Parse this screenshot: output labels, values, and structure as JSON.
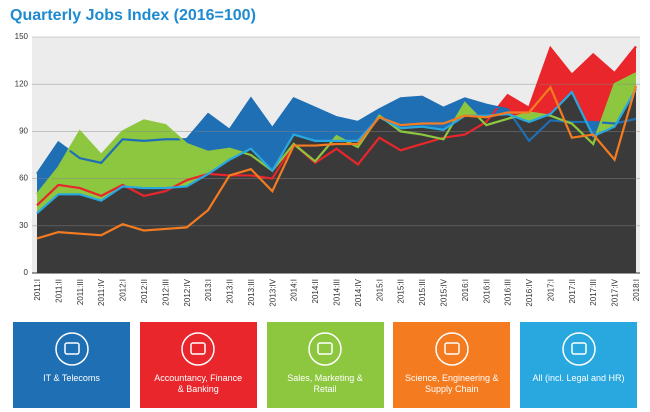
{
  "chart_data": {
    "type": "area-line",
    "title": "Quarterly Jobs Index (2016=100)",
    "categories": [
      "2011:I",
      "2011:II",
      "2011:III",
      "2011:IV",
      "2012:I",
      "2012:II",
      "2012:III",
      "2012:IV",
      "2013:I",
      "2013:II",
      "2013:III",
      "2013:IV",
      "2014:I",
      "2014:II",
      "2014:III",
      "2014:IV",
      "2015:I",
      "2015:II",
      "2015:III",
      "2015:IV",
      "2016:I",
      "2016:II",
      "2016:III",
      "2016:IV",
      "2017:I",
      "2017:II",
      "2017:III",
      "2017:IV",
      "2018:I"
    ],
    "ylim": [
      0,
      150
    ],
    "yticks": [
      0,
      30,
      60,
      90,
      120,
      150
    ],
    "grid": true,
    "series": [
      {
        "name": "Accountancy, Finance & Banking",
        "color": "#e8262b",
        "area": true,
        "values": [
          43,
          56,
          54,
          49,
          56,
          49,
          52,
          59,
          63,
          62,
          62,
          60,
          82,
          70,
          79,
          69,
          86,
          78,
          82,
          86,
          88,
          96,
          113,
          105,
          143,
          126,
          139,
          127,
          144
        ]
      },
      {
        "name": "IT & Telecoms",
        "color": "#1f6fb5",
        "area": true,
        "values": [
          63,
          83,
          73,
          70,
          85,
          84,
          85,
          85,
          101,
          91,
          111,
          92,
          111,
          105,
          99,
          96,
          104,
          111,
          112,
          105,
          111,
          107,
          104,
          84,
          97,
          96,
          96,
          95,
          98
        ]
      },
      {
        "name": "Sales, Marketing & Retail",
        "color": "#8dc63f",
        "area": true,
        "values": [
          50,
          67,
          90,
          75,
          90,
          97,
          94,
          82,
          77,
          79,
          75,
          65,
          82,
          71,
          87,
          80,
          100,
          90,
          88,
          85,
          108,
          94,
          98,
          102,
          100,
          95,
          82,
          120,
          127
        ]
      },
      {
        "name": "All (incl. Legal and HR)",
        "color": "#29a8e0",
        "area": true,
        "area_color": "#3a3a3a",
        "values": [
          38,
          50,
          50,
          46,
          55,
          54,
          54,
          55,
          63,
          72,
          79,
          65,
          88,
          84,
          84,
          84,
          99,
          92,
          93,
          91,
          100,
          100,
          101,
          96,
          101,
          115,
          87,
          93,
          117
        ]
      },
      {
        "name": "Science, Engineering & Supply Chain",
        "color": "#f47b20",
        "area": false,
        "values": [
          22,
          26,
          25,
          24,
          31,
          27,
          28,
          29,
          40,
          62,
          66,
          52,
          81,
          81,
          82,
          82,
          99,
          94,
          95,
          95,
          100,
          99,
          102,
          102,
          118,
          86,
          88,
          72,
          119
        ]
      }
    ],
    "legend_order": [
      1,
      0,
      2,
      4,
      3
    ]
  }
}
